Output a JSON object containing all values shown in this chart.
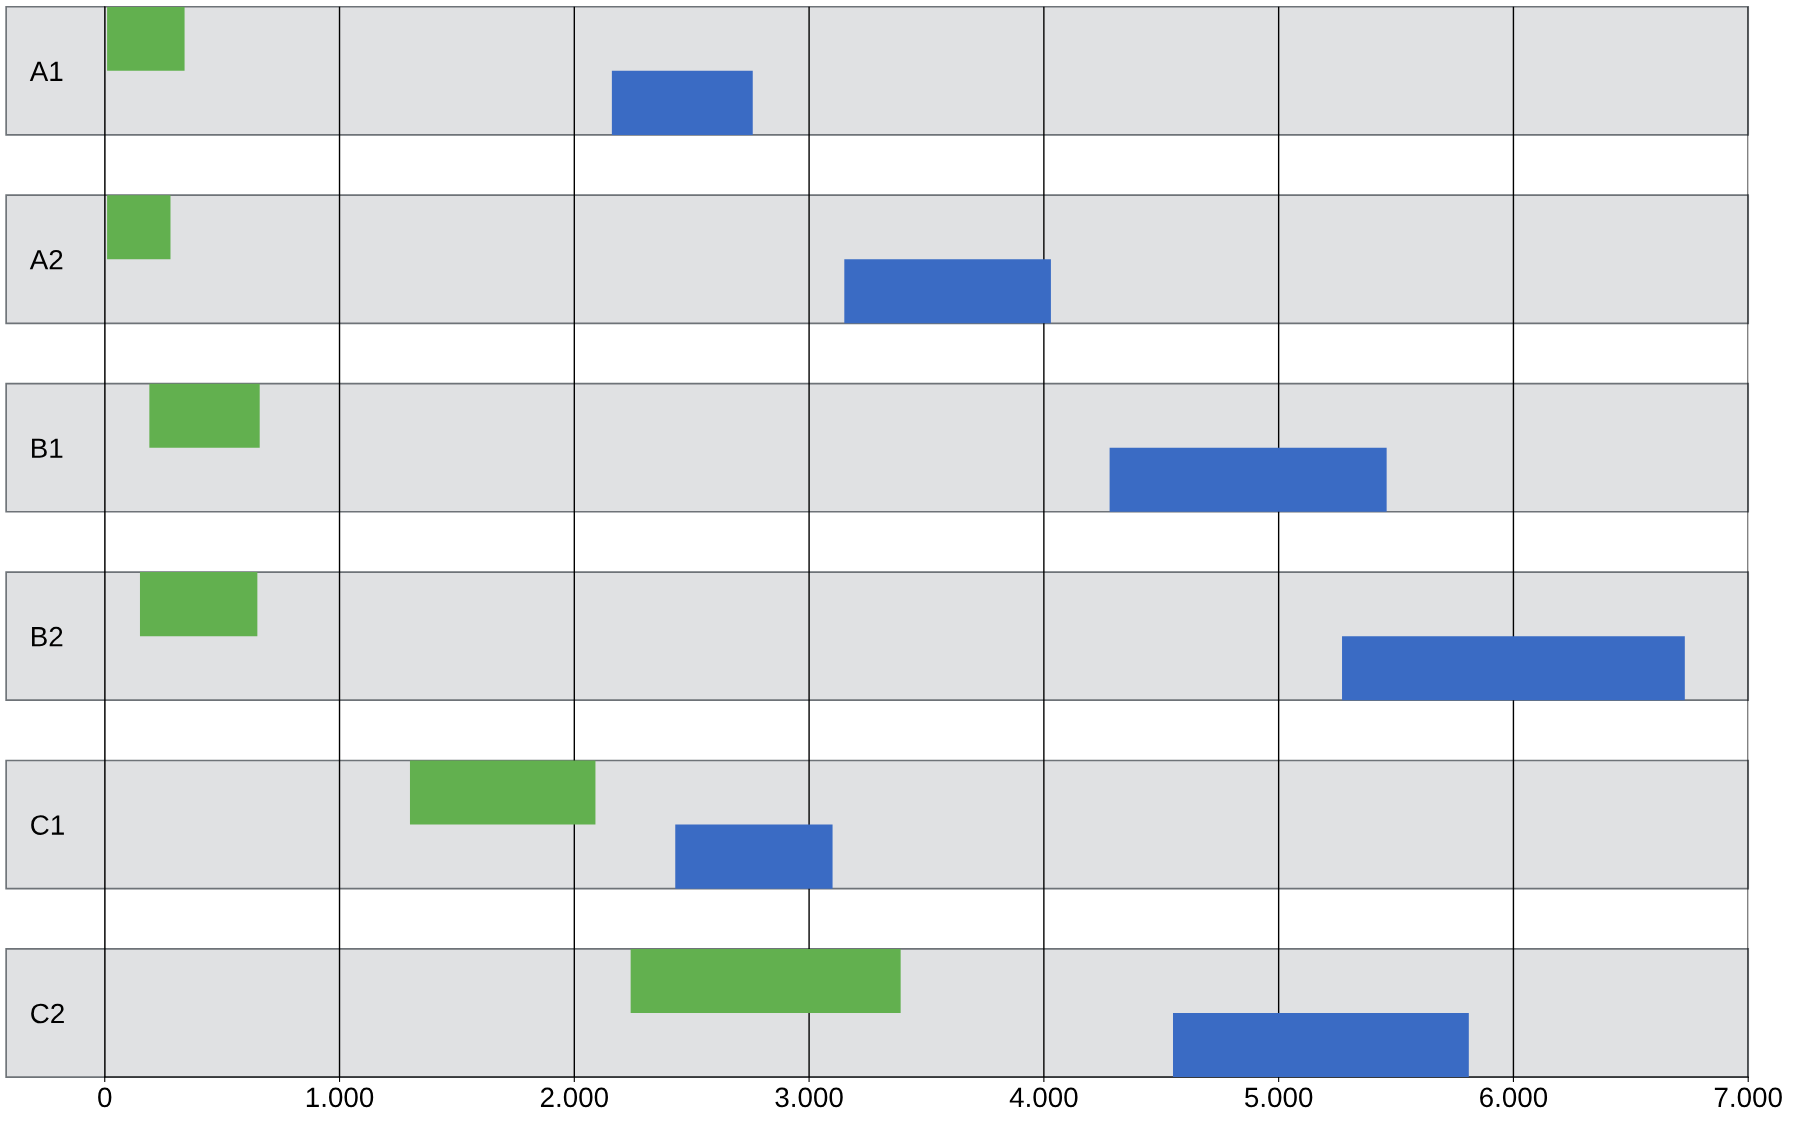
{
  "chart_data": {
    "type": "bar",
    "orientation": "horizontal",
    "categories": [
      "A1",
      "A2",
      "B1",
      "B2",
      "C1",
      "C2"
    ],
    "series": [
      {
        "color": "#62b04f",
        "base": [
          10,
          10,
          190,
          150,
          1300,
          2240
        ],
        "values": [
          330,
          270,
          470,
          500,
          790,
          1150
        ]
      },
      {
        "color": "#3a6bc4",
        "base": [
          2160,
          3150,
          4280,
          5270,
          2430,
          4550
        ],
        "values": [
          600,
          880,
          1180,
          1460,
          670,
          1260
        ]
      }
    ],
    "bands": [
      {
        "axis": "y",
        "from": "A1",
        "to": "A1",
        "color": "#e0e1e3"
      },
      {
        "axis": "y",
        "from": "A2",
        "to": "A2",
        "color": "#e0e1e3"
      },
      {
        "axis": "y",
        "from": "B1",
        "to": "B1",
        "color": "#e0e1e3"
      },
      {
        "axis": "y",
        "from": "B2",
        "to": "B2",
        "color": "#e0e1e3"
      },
      {
        "axis": "y",
        "from": "C1",
        "to": "C1",
        "color": "#e0e1e3"
      },
      {
        "axis": "y",
        "from": "C2",
        "to": "C2",
        "color": "#e0e1e3"
      }
    ],
    "xlim": [
      0,
      7000
    ],
    "xticks": [
      0,
      {
        "value": 1000,
        "label": "1.000"
      },
      {
        "value": 2000,
        "label": "2.000"
      },
      {
        "value": 3000,
        "label": "3.000"
      },
      {
        "value": 4000,
        "label": "4.000"
      },
      {
        "value": 5000,
        "label": "5.000"
      },
      {
        "value": 6000,
        "label": "6.000"
      },
      {
        "value": 7000,
        "label": "7.000"
      }
    ],
    "grid": "x",
    "legend": false
  }
}
